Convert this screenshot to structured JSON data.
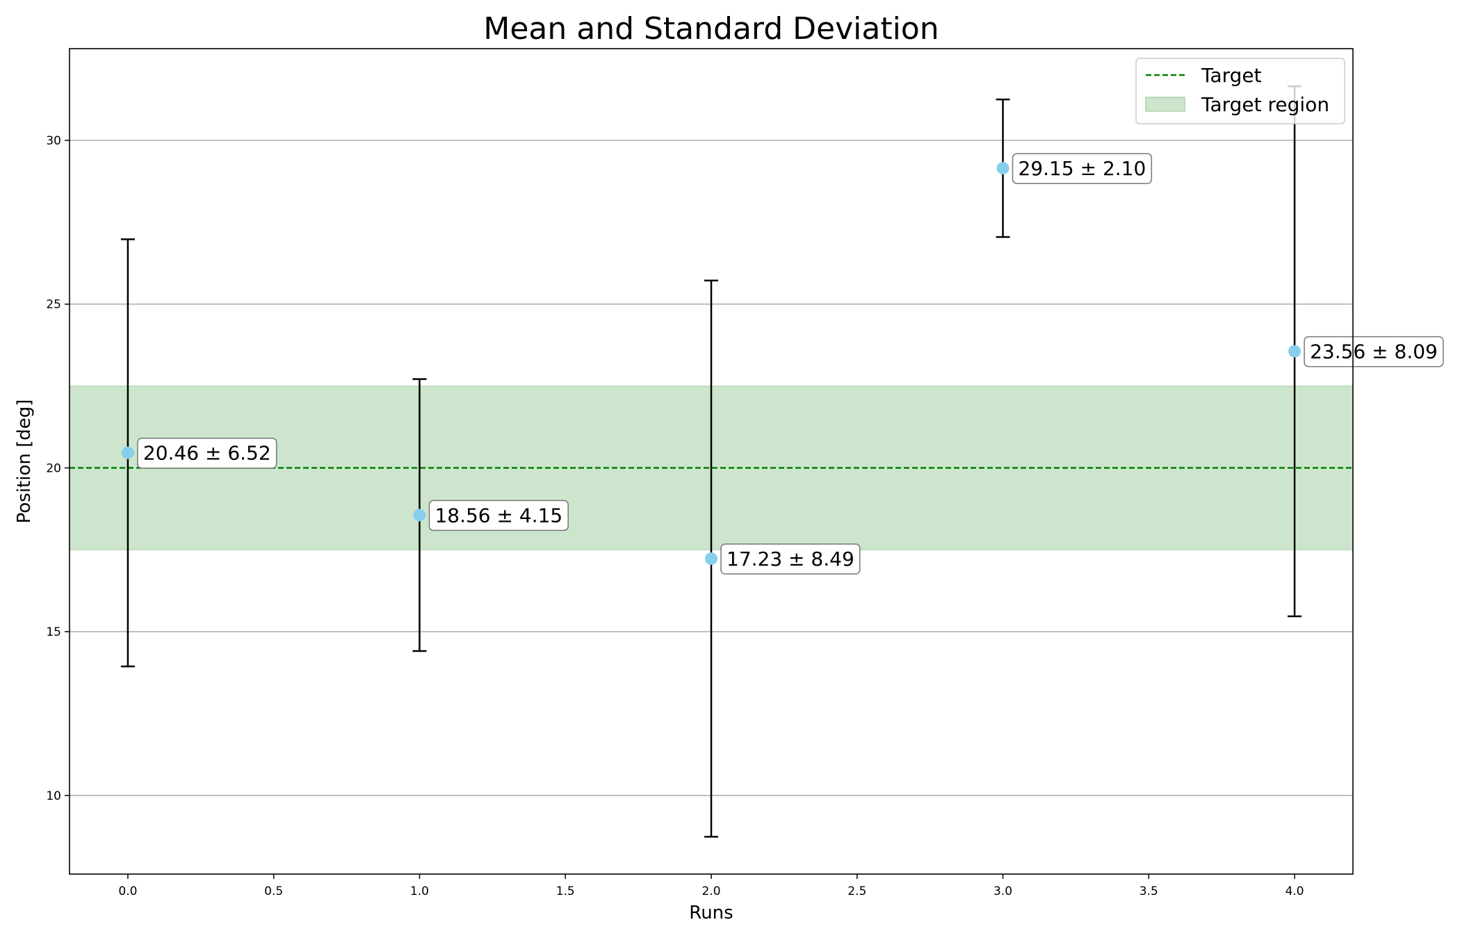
{
  "chart_data": {
    "type": "scatter",
    "title": "Mean and Standard Deviation",
    "xlabel": "Runs",
    "ylabel": "Position [deg]",
    "xlim": [
      -0.2,
      4.2
    ],
    "ylim": [
      7.6,
      32.8
    ],
    "xticks": [
      0.0,
      0.5,
      1.0,
      1.5,
      2.0,
      2.5,
      3.0,
      3.5,
      4.0
    ],
    "xtick_labels": [
      "0.0",
      "0.5",
      "1.0",
      "1.5",
      "2.0",
      "2.5",
      "3.0",
      "3.5",
      "4.0"
    ],
    "yticks": [
      10,
      15,
      20,
      25,
      30
    ],
    "ytick_labels": [
      "10",
      "15",
      "20",
      "25",
      "30"
    ],
    "grid": "y",
    "legend_position": "top-right",
    "series": [
      {
        "marker_color": "#87ceeb",
        "errorbar_color": "#000000",
        "x": [
          0,
          1,
          2,
          3,
          4
        ],
        "mean": [
          20.46,
          18.56,
          17.23,
          29.15,
          23.56
        ],
        "std": [
          6.52,
          4.15,
          8.49,
          2.1,
          8.09
        ],
        "labels": [
          "20.46 ± 6.52",
          "18.56 ± 4.15",
          "17.23 ± 8.49",
          "29.15 ± 2.10",
          "23.56 ± 8.09"
        ]
      }
    ],
    "target": {
      "name": "Target",
      "value": 20,
      "color": "#008000",
      "style": "dashed"
    },
    "target_region": {
      "name": "Target region",
      "low": 17.5,
      "high": 22.5,
      "color": "#cde5cd"
    }
  }
}
